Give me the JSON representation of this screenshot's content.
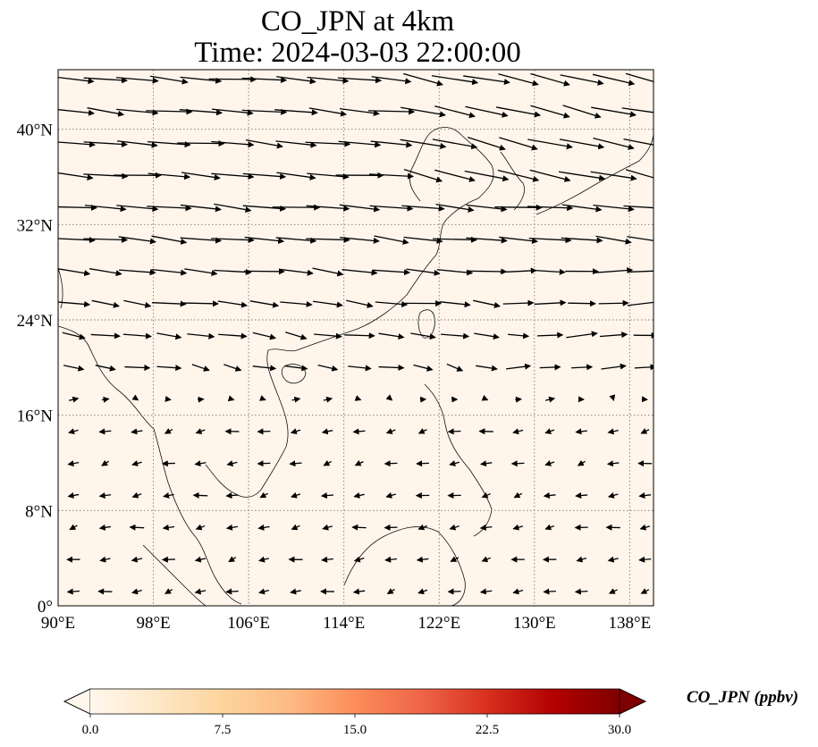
{
  "title": {
    "line1": "CO_JPN at 4km",
    "line2": "Time: 2024-03-03 22:00:00"
  },
  "map": {
    "extent": {
      "lon": [
        90,
        140
      ],
      "lat": [
        0,
        45
      ]
    },
    "lon_ticks": [
      {
        "value": 90,
        "label": "90°E"
      },
      {
        "value": 98,
        "label": "98°E"
      },
      {
        "value": 106,
        "label": "106°E"
      },
      {
        "value": 114,
        "label": "114°E"
      },
      {
        "value": 122,
        "label": "122°E"
      },
      {
        "value": 130,
        "label": "130°E"
      },
      {
        "value": 138,
        "label": "138°E"
      }
    ],
    "lat_ticks": [
      {
        "value": 0,
        "label": "0°"
      },
      {
        "value": 8,
        "label": "8°N"
      },
      {
        "value": 16,
        "label": "16°N"
      },
      {
        "value": 24,
        "label": "24°N"
      },
      {
        "value": 32,
        "label": "32°N"
      },
      {
        "value": 40,
        "label": "40°N"
      }
    ],
    "background_color": "#fff5eb",
    "gridlines": "dotted"
  },
  "colorbar": {
    "label": "CO_JPN (ppbv)",
    "ticks": [
      {
        "value": 0,
        "label": "0.0"
      },
      {
        "value": 7.5,
        "label": "7.5"
      },
      {
        "value": 15,
        "label": "15.0"
      },
      {
        "value": 22.5,
        "label": "22.5"
      },
      {
        "value": 30,
        "label": "30.0"
      }
    ],
    "range": [
      0,
      30
    ],
    "colormap": "OrRd",
    "extend": "both",
    "colors": [
      "#fff7ec",
      "#fee8c8",
      "#fdd49e",
      "#fdbb84",
      "#fc8d59",
      "#ef6548",
      "#d7301f",
      "#b30000",
      "#7f0000"
    ]
  }
}
